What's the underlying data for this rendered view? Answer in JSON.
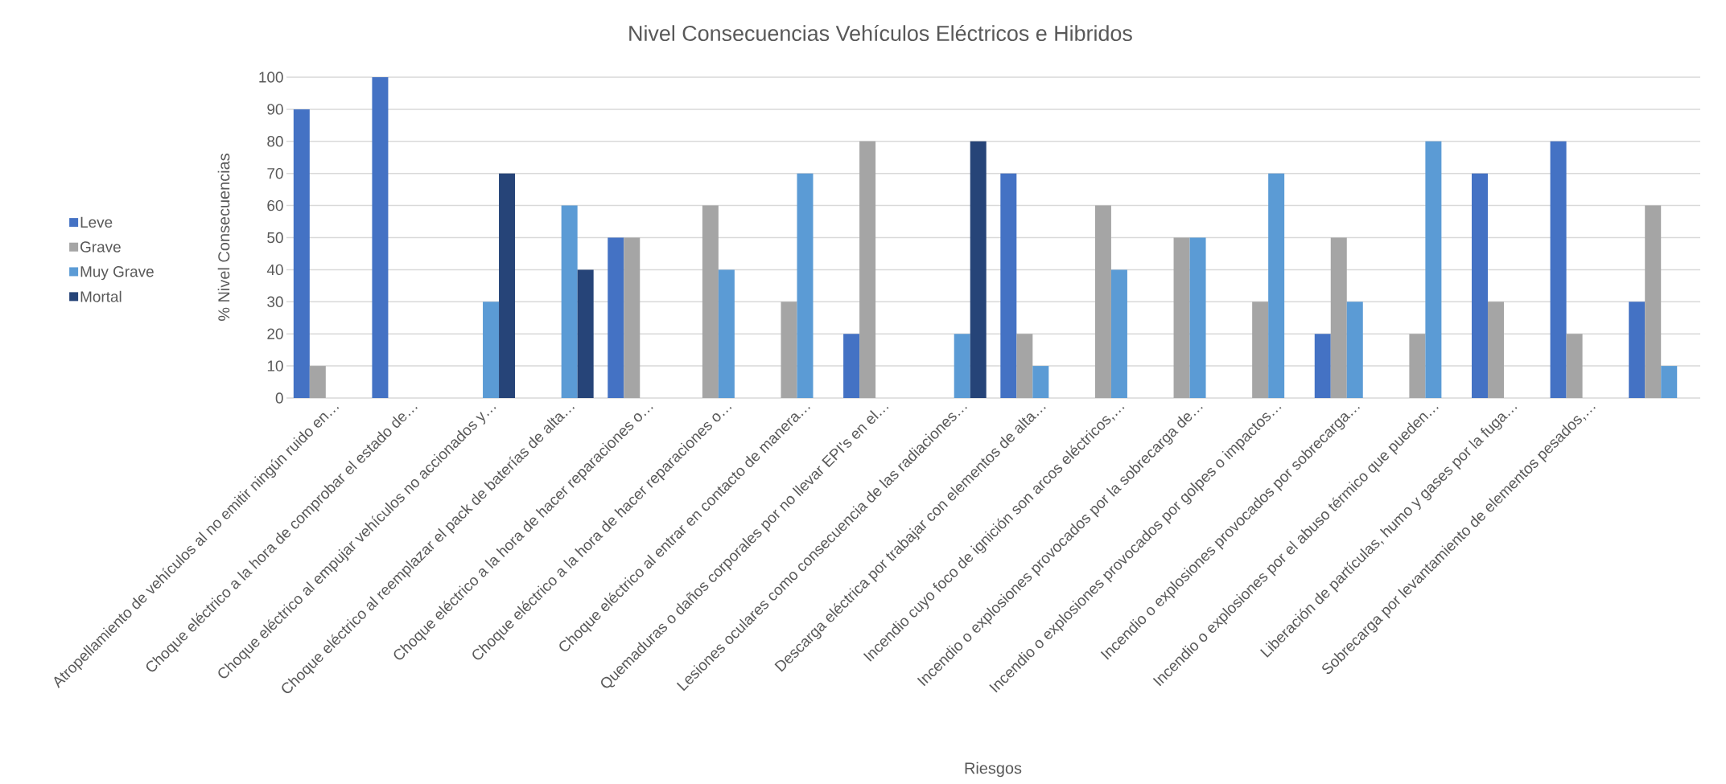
{
  "chart_data": {
    "type": "bar",
    "title": "Nivel Consecuencias Vehículos Eléctricos e Hibridos",
    "xlabel": "Riesgos",
    "ylabel": "% Nivel Consecuencias",
    "categories": [
      "Atropellamiento de vehículos al no emitir ningún ruido en…",
      "Choque eléctrico a la hora de comprobar el estado de…",
      "Choque eléctrico al empujar vehículos no accionados y…",
      "Choque eléctrico al reemplazar el pack de baterías de alta…",
      "Choque eléctrico a la hora de hacer reparaciones o…",
      "Choque eléctrico a la hora de hacer reparaciones o…",
      "Choque eléctrico al entrar en contacto de manera…",
      "Quemaduras o daños corporales por no llevar EPI's en el…",
      "Lesiones oculares como consecuencia de las radiaciones…",
      "Descarga eléctrica por trabajar con elementos de alta…",
      "Incendio cuyo foco de ignición son arcos eléctricos,…",
      "Incendio o explosiones provocados por la sobrecarga de…",
      "Incendio o explosiones provocados por golpes o impactos…",
      "Incendio o explosiones provocados por sobrecarga…",
      "Incendio o explosiones por el abuso térmico que pueden…",
      "Liberación de partículas, humo y gases por la fuga…",
      "Sobrecarga por levantamiento de elementos pesados,…",
      null
    ],
    "series": [
      {
        "name": "Leve",
        "color": "#4472c4",
        "values": [
          90,
          100,
          0,
          0,
          50,
          0,
          0,
          20,
          0,
          70,
          0,
          0,
          0,
          20,
          0,
          70,
          80,
          30
        ]
      },
      {
        "name": "Grave",
        "color": "#a5a5a5",
        "values": [
          10,
          0,
          0,
          0,
          50,
          60,
          30,
          80,
          0,
          20,
          60,
          50,
          30,
          50,
          20,
          30,
          20,
          60
        ]
      },
      {
        "name": "Muy Grave",
        "color": "#5b9bd5",
        "values": [
          0,
          0,
          30,
          60,
          0,
          40,
          70,
          0,
          20,
          10,
          40,
          50,
          70,
          30,
          80,
          0,
          0,
          10
        ]
      },
      {
        "name": "Mortal",
        "color": "#264478",
        "values": [
          0,
          0,
          70,
          40,
          0,
          0,
          0,
          0,
          80,
          0,
          0,
          0,
          0,
          0,
          0,
          0,
          0,
          0
        ]
      }
    ],
    "ylim": [
      0,
      100
    ],
    "yticks": [
      0,
      10,
      20,
      30,
      40,
      50,
      60,
      70,
      80,
      90,
      100
    ],
    "grid": "y",
    "legend": "left"
  }
}
